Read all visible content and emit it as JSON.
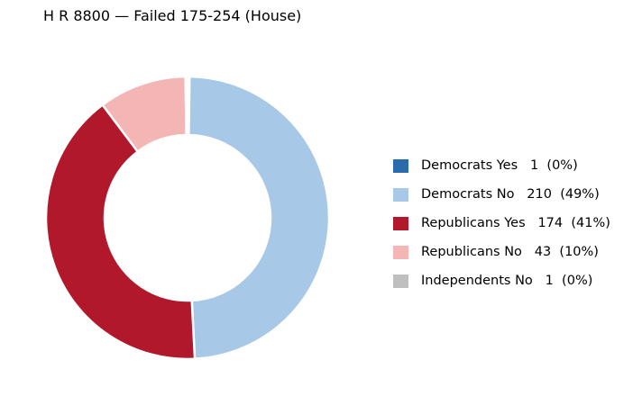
{
  "chart_data": {
    "type": "pie",
    "title": "H R 8800 — Failed 175-254 (House)",
    "slices": [
      {
        "label": "Democrats Yes",
        "value": 1,
        "pct": "0%",
        "color": "#2b6aab"
      },
      {
        "label": "Democrats No",
        "value": 210,
        "pct": "49%",
        "color": "#a8c8e8"
      },
      {
        "label": "Republicans Yes",
        "value": 174,
        "pct": "41%",
        "color": "#b2182b"
      },
      {
        "label": "Republicans No",
        "value": 43,
        "pct": "10%",
        "color": "#f4b6b4"
      },
      {
        "label": "Independents No",
        "value": 1,
        "pct": "0%",
        "color": "#bfbfbf"
      }
    ],
    "legend_entries": [
      "Democrats Yes   1  (0%)",
      "Democrats No   210  (49%)",
      "Republicans Yes   174  (41%)",
      "Republicans No   43  (10%)",
      "Independents No   1  (0%)"
    ],
    "legend_position": "right"
  }
}
